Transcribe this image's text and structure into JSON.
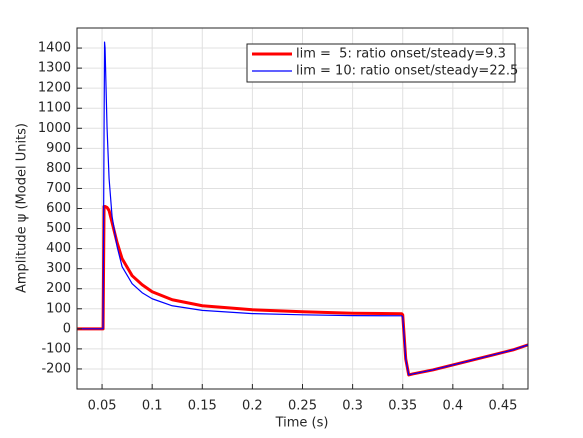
{
  "chart_data": {
    "type": "line",
    "xlabel": "Time (s)",
    "ylabel": "Amplitude ψ (Model Units)",
    "x": [
      0.025,
      0.05,
      0.051,
      0.052,
      0.0525,
      0.053,
      0.055,
      0.057,
      0.06,
      0.065,
      0.07,
      0.08,
      0.09,
      0.1,
      0.12,
      0.15,
      0.2,
      0.25,
      0.3,
      0.349,
      0.35,
      0.353,
      0.356,
      0.36,
      0.38,
      0.4,
      0.42,
      0.44,
      0.46,
      0.475
    ],
    "series": [
      {
        "name": "lim =  5: ratio onset/steady=9.3",
        "color": "#ff0000",
        "width": 3,
        "values": [
          0,
          0,
          0,
          610,
          610,
          610,
          605,
          590,
          530,
          430,
          350,
          265,
          220,
          185,
          145,
          115,
          95,
          85,
          78,
          75,
          70,
          -150,
          -230,
          -225,
          -205,
          -180,
          -155,
          -130,
          -105,
          -80
        ]
      },
      {
        "name": "lim = 10: ratio onset/steady=22.5",
        "color": "#0000ff",
        "width": 1.2,
        "values": [
          0,
          0,
          0,
          1000,
          1430,
          1400,
          1000,
          750,
          560,
          410,
          310,
          225,
          180,
          150,
          115,
          92,
          76,
          70,
          66,
          65,
          60,
          -150,
          -230,
          -225,
          -205,
          -180,
          -155,
          -130,
          -105,
          -80
        ]
      }
    ],
    "xlim": [
      0.025,
      0.475
    ],
    "xticks": [
      0.05,
      0.1,
      0.15,
      0.2,
      0.25,
      0.3,
      0.35,
      0.4,
      0.45
    ],
    "ylim": [
      -300,
      1500
    ],
    "yticks": [
      -200,
      -100,
      0,
      100,
      200,
      300,
      400,
      500,
      600,
      700,
      800,
      900,
      1000,
      1100,
      1200,
      1300,
      1400
    ],
    "grid": true,
    "legend": "northeast"
  }
}
